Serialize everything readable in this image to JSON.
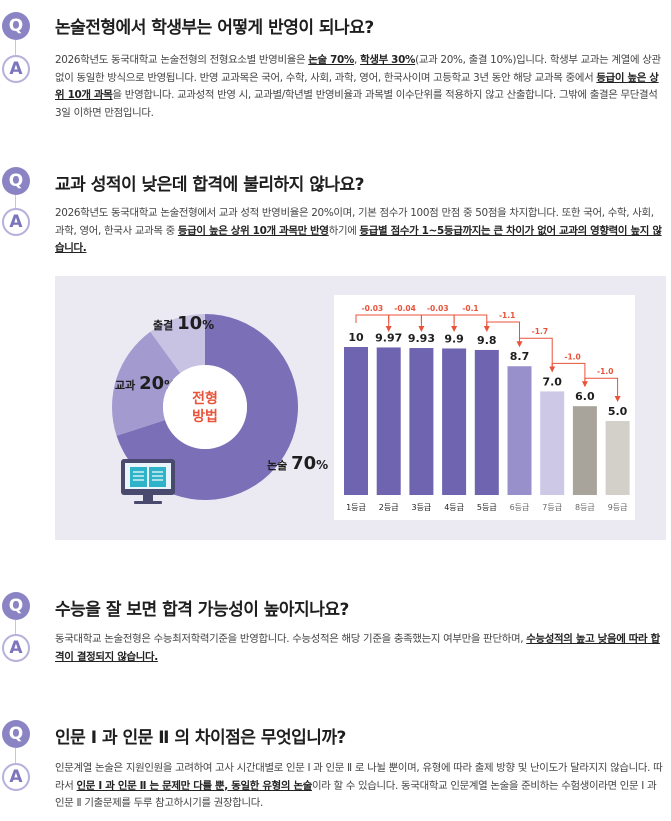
{
  "qa": [
    {
      "q_mark": "Q",
      "a_mark": "A",
      "question": "논술전형에서 학생부는 어떻게 반영이 되나요?",
      "answer": [
        {
          "t": "2026학년도 동국대학교 논술전형의 전형요소별 반영비율은 "
        },
        {
          "t": "논술 70%",
          "b": true
        },
        {
          "t": ", "
        },
        {
          "t": "학생부 30%",
          "b": true
        },
        {
          "t": "(교과 20%, 출결 10%)입니다. 학생부 교과는 계열에 상관없이 동일한 방식으로 반영됩니다. 반영 교과목은 국어, 수학, 사회, 과학, 영어, 한국사이며 고등학교 3년 동안 해당 교과목 중에서 "
        },
        {
          "t": "등급이 높은 상위 10개 과목",
          "b": true
        },
        {
          "t": "을 반영합니다. 교과성적 반영 시, 교과별/학년별 반영비율과 과목별 이수단위를 적용하지 않고 산출합니다. 그밖에 출결은 무단결석 3일 이하면 만점입니다."
        }
      ]
    },
    {
      "q_mark": "Q",
      "a_mark": "A",
      "question": "교과 성적이 낮은데 합격에 불리하지 않나요?",
      "answer": [
        {
          "t": "2026학년도 동국대학교 논술전형에서 교과 성적 반영비율은 20%이며, 기본 점수가 100점 만점 중 50점을 차지합니다. 또한 국어, 수학, 사회, 과학, 영어, 한국사 교과목 중 "
        },
        {
          "t": "등급이 높은 상위 10개 과목만 반영",
          "b": true
        },
        {
          "t": "하기에 "
        },
        {
          "t": "등급별 점수가 1~5등급까지는 큰 차이가 없어 교과의 영향력이 높지 않습니다.",
          "b": true
        }
      ]
    },
    {
      "q_mark": "Q",
      "a_mark": "A",
      "question": "수능을 잘 보면 합격 가능성이 높아지나요?",
      "answer": [
        {
          "t": "동국대학교 논술전형은 수능최저학력기준을 반영합니다. 수능성적은 해당 기준을 충족했는지 여부만을 판단하며, "
        },
        {
          "t": "수능성적의 높고 낮음에 따라 합격이 결정되지 않습니다.",
          "b": true
        }
      ]
    },
    {
      "q_mark": "Q",
      "a_mark": "A",
      "question": "인문 Ⅰ 과 인문 Ⅱ 의 차이점은 무엇입니까?",
      "answer": [
        {
          "t": "인문계열 논술은 지원인원을 고려하여 고사 시간대별로 인문 Ⅰ 과 인문 Ⅱ 로 나뉠 뿐이며, 유형에 따라 출제 방향 및 난이도가 달라지지 않습니다. 따라서 "
        },
        {
          "t": "인문 Ⅰ 과 인문 Ⅱ 는 문제만 다를 뿐, 동일한 유형의 논술",
          "b": true
        },
        {
          "t": "이라 할 수 있습니다. 동국대학교 인문계열 논술을 준비하는 수험생이라면 인문 Ⅰ 과 인문 Ⅱ 기출문제를 두루 참고하시기를 권장합니다."
        }
      ]
    }
  ],
  "chart_data": [
    {
      "type": "pie",
      "center_label": [
        "전형",
        "방법"
      ],
      "slices": [
        {
          "name": "논술",
          "value": 70,
          "unit": "%",
          "color": "#7b70b8"
        },
        {
          "name": "교과",
          "value": 20,
          "unit": "%",
          "color": "#a39ad0"
        },
        {
          "name": "출결",
          "value": 10,
          "unit": "%",
          "color": "#c8c2e3"
        }
      ],
      "center_text_color": "#e8533a"
    },
    {
      "type": "bar",
      "categories": [
        "1등급",
        "2등급",
        "3등급",
        "4등급",
        "5등급",
        "6등급",
        "7등급",
        "8등급",
        "9등급"
      ],
      "values": [
        10,
        9.97,
        9.93,
        9.9,
        9.8,
        8.7,
        7.0,
        6.0,
        5.0
      ],
      "value_labels": [
        "10",
        "9.97",
        "9.93",
        "9.9",
        "9.8",
        "8.7",
        "7.0",
        "6.0",
        "5.0"
      ],
      "differences": [
        "-0.03",
        "-0.04",
        "-0.03",
        "-0.1",
        "-1.1",
        "-1.7",
        "-1.0",
        "-1.0"
      ],
      "ylim": [
        0,
        10
      ],
      "colors": [
        "#6e64b0",
        "#6e64b0",
        "#6e64b0",
        "#6e64b0",
        "#6e64b0",
        "#9890ca",
        "#cdc8e6",
        "#a8a39b",
        "#d3d0ca"
      ],
      "arrow_color": "#e8533a"
    }
  ],
  "icon": "monitor-book-icon"
}
